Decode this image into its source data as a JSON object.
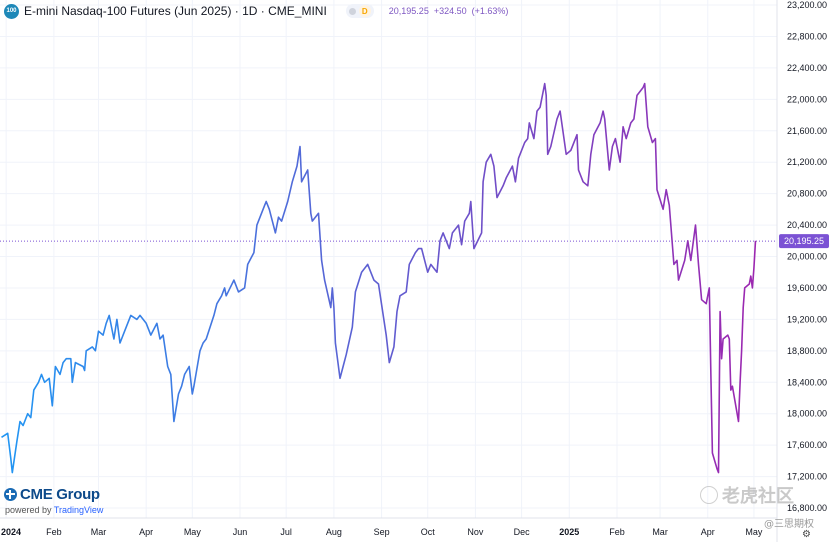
{
  "header": {
    "symbol_icon_text": "100",
    "series_title": "E-mini Nasdaq-100 Futures (Jun 2025) · 1D · CME_MINI",
    "delay_badge": "D",
    "last": "20,195.25",
    "change": "+324.50",
    "change_pct": "(+1.63%)"
  },
  "brand": {
    "logo_text": "CME Group",
    "powered_prefix": "powered by ",
    "powered_name": "TradingView"
  },
  "watermark": {
    "main": "老虎社区",
    "secondary": "@三思期权"
  },
  "colors": {
    "gradient_start": "#2196f3",
    "gradient_end": "#9c27b0",
    "price_label_bg": "#7b52d4",
    "grid": "#f0f3fa",
    "axis_text": "#131722"
  },
  "chart_data": {
    "type": "line",
    "title": "E-mini Nasdaq-100 Futures (Jun 2025) · 1D · CME_MINI",
    "last_price_label": "20,195.25",
    "last_price_value": 20195.25,
    "ylim": [
      16800,
      23200
    ],
    "y_ticks": [
      {
        "value": 23200,
        "label": "23,200.00"
      },
      {
        "value": 22800,
        "label": "22,800.00"
      },
      {
        "value": 22400,
        "label": "22,400.00"
      },
      {
        "value": 22000,
        "label": "22,000.00"
      },
      {
        "value": 21600,
        "label": "21,600.00"
      },
      {
        "value": 21200,
        "label": "21,200.00"
      },
      {
        "value": 20800,
        "label": "20,800.00"
      },
      {
        "value": 20400,
        "label": "20,400.00"
      },
      {
        "value": 20000,
        "label": "20,000.00"
      },
      {
        "value": 19600,
        "label": "19,600.00"
      },
      {
        "value": 19200,
        "label": "19,200.00"
      },
      {
        "value": 18800,
        "label": "18,800.00"
      },
      {
        "value": 18400,
        "label": "18,400.00"
      },
      {
        "value": 18000,
        "label": "18,000.00"
      },
      {
        "value": 17600,
        "label": "17,600.00"
      },
      {
        "value": 17200,
        "label": "17,200.00"
      },
      {
        "value": 16800,
        "label": "16,800.00"
      }
    ],
    "x_ticks": [
      {
        "label": "2024",
        "date": "2024-01-01",
        "bold": true
      },
      {
        "label": "Feb",
        "date": "2024-02-01"
      },
      {
        "label": "Mar",
        "date": "2024-03-01"
      },
      {
        "label": "Apr",
        "date": "2024-04-01"
      },
      {
        "label": "May",
        "date": "2024-05-01"
      },
      {
        "label": "Jun",
        "date": "2024-06-01"
      },
      {
        "label": "Jul",
        "date": "2024-07-01"
      },
      {
        "label": "Aug",
        "date": "2024-08-01"
      },
      {
        "label": "Sep",
        "date": "2024-09-01"
      },
      {
        "label": "Oct",
        "date": "2024-10-01"
      },
      {
        "label": "Nov",
        "date": "2024-11-01"
      },
      {
        "label": "Dec",
        "date": "2024-12-01"
      },
      {
        "label": "2025",
        "date": "2025-01-01",
        "bold": true
      },
      {
        "label": "Feb",
        "date": "2025-02-01"
      },
      {
        "label": "Mar",
        "date": "2025-03-01"
      },
      {
        "label": "Apr",
        "date": "2025-04-01"
      },
      {
        "label": "May",
        "date": "2025-05-01"
      }
    ],
    "x_range": [
      "2023-12-28",
      "2025-05-16"
    ],
    "series": [
      {
        "values": [
          [
            "2023-12-29",
            17700
          ],
          [
            "2024-01-02",
            17750
          ],
          [
            "2024-01-04",
            17430
          ],
          [
            "2024-01-05",
            17250
          ],
          [
            "2024-01-08",
            17650
          ],
          [
            "2024-01-10",
            17900
          ],
          [
            "2024-01-12",
            17850
          ],
          [
            "2024-01-15",
            18000
          ],
          [
            "2024-01-17",
            17950
          ],
          [
            "2024-01-19",
            18300
          ],
          [
            "2024-01-22",
            18400
          ],
          [
            "2024-01-24",
            18500
          ],
          [
            "2024-01-26",
            18400
          ],
          [
            "2024-01-29",
            18450
          ],
          [
            "2024-01-31",
            18100
          ],
          [
            "2024-02-02",
            18600
          ],
          [
            "2024-02-05",
            18500
          ],
          [
            "2024-02-07",
            18650
          ],
          [
            "2024-02-09",
            18700
          ],
          [
            "2024-02-12",
            18700
          ],
          [
            "2024-02-13",
            18400
          ],
          [
            "2024-02-15",
            18650
          ],
          [
            "2024-02-20",
            18600
          ],
          [
            "2024-02-21",
            18550
          ],
          [
            "2024-02-22",
            18800
          ],
          [
            "2024-02-26",
            18850
          ],
          [
            "2024-02-28",
            18800
          ],
          [
            "2024-03-01",
            19050
          ],
          [
            "2024-03-04",
            19000
          ],
          [
            "2024-03-06",
            19150
          ],
          [
            "2024-03-08",
            19250
          ],
          [
            "2024-03-11",
            18950
          ],
          [
            "2024-03-13",
            19200
          ],
          [
            "2024-03-15",
            18900
          ],
          [
            "2024-03-18",
            19050
          ],
          [
            "2024-03-20",
            19150
          ],
          [
            "2024-03-22",
            19250
          ],
          [
            "2024-03-26",
            19200
          ],
          [
            "2024-03-28",
            19250
          ],
          [
            "2024-04-01",
            19150
          ],
          [
            "2024-04-04",
            19000
          ],
          [
            "2024-04-08",
            19150
          ],
          [
            "2024-04-10",
            18950
          ],
          [
            "2024-04-12",
            19000
          ],
          [
            "2024-04-15",
            18600
          ],
          [
            "2024-04-17",
            18500
          ],
          [
            "2024-04-19",
            17900
          ],
          [
            "2024-04-22",
            18250
          ],
          [
            "2024-04-24",
            18350
          ],
          [
            "2024-04-26",
            18500
          ],
          [
            "2024-04-29",
            18600
          ],
          [
            "2024-05-01",
            18250
          ],
          [
            "2024-05-02",
            18350
          ],
          [
            "2024-05-06",
            18800
          ],
          [
            "2024-05-08",
            18900
          ],
          [
            "2024-05-10",
            18950
          ],
          [
            "2024-05-15",
            19250
          ],
          [
            "2024-05-17",
            19400
          ],
          [
            "2024-05-20",
            19500
          ],
          [
            "2024-05-22",
            19600
          ],
          [
            "2024-05-23",
            19500
          ],
          [
            "2024-05-28",
            19700
          ],
          [
            "2024-05-31",
            19550
          ],
          [
            "2024-06-04",
            19600
          ],
          [
            "2024-06-06",
            19900
          ],
          [
            "2024-06-10",
            20050
          ],
          [
            "2024-06-12",
            20400
          ],
          [
            "2024-06-14",
            20500
          ],
          [
            "2024-06-17",
            20650
          ],
          [
            "2024-06-18",
            20700
          ],
          [
            "2024-06-20",
            20600
          ],
          [
            "2024-06-24",
            20300
          ],
          [
            "2024-06-26",
            20500
          ],
          [
            "2024-06-28",
            20450
          ],
          [
            "2024-07-02",
            20700
          ],
          [
            "2024-07-05",
            20950
          ],
          [
            "2024-07-08",
            21150
          ],
          [
            "2024-07-10",
            21400
          ],
          [
            "2024-07-11",
            20950
          ],
          [
            "2024-07-15",
            21100
          ],
          [
            "2024-07-17",
            20550
          ],
          [
            "2024-07-18",
            20450
          ],
          [
            "2024-07-22",
            20550
          ],
          [
            "2024-07-24",
            19950
          ],
          [
            "2024-07-26",
            19700
          ],
          [
            "2024-07-30",
            19350
          ],
          [
            "2024-07-31",
            19600
          ],
          [
            "2024-08-01",
            19350
          ],
          [
            "2024-08-02",
            18900
          ],
          [
            "2024-08-05",
            18450
          ],
          [
            "2024-08-07",
            18600
          ],
          [
            "2024-08-09",
            18750
          ],
          [
            "2024-08-13",
            19100
          ],
          [
            "2024-08-15",
            19550
          ],
          [
            "2024-08-19",
            19800
          ],
          [
            "2024-08-21",
            19850
          ],
          [
            "2024-08-23",
            19900
          ],
          [
            "2024-08-27",
            19700
          ],
          [
            "2024-08-30",
            19650
          ],
          [
            "2024-09-04",
            19000
          ],
          [
            "2024-09-06",
            18650
          ],
          [
            "2024-09-09",
            18850
          ],
          [
            "2024-09-11",
            19300
          ],
          [
            "2024-09-13",
            19500
          ],
          [
            "2024-09-17",
            19550
          ],
          [
            "2024-09-19",
            19900
          ],
          [
            "2024-09-23",
            20050
          ],
          [
            "2024-09-25",
            20100
          ],
          [
            "2024-09-27",
            20100
          ],
          [
            "2024-10-01",
            19800
          ],
          [
            "2024-10-03",
            19900
          ],
          [
            "2024-10-07",
            19800
          ],
          [
            "2024-10-09",
            20200
          ],
          [
            "2024-10-11",
            20300
          ],
          [
            "2024-10-15",
            20100
          ],
          [
            "2024-10-17",
            20300
          ],
          [
            "2024-10-21",
            20400
          ],
          [
            "2024-10-23",
            20150
          ],
          [
            "2024-10-25",
            20450
          ],
          [
            "2024-10-28",
            20550
          ],
          [
            "2024-10-29",
            20700
          ],
          [
            "2024-10-31",
            20100
          ],
          [
            "2024-11-05",
            20300
          ],
          [
            "2024-11-06",
            20950
          ],
          [
            "2024-11-08",
            21200
          ],
          [
            "2024-11-11",
            21300
          ],
          [
            "2024-11-13",
            21150
          ],
          [
            "2024-11-15",
            20750
          ],
          [
            "2024-11-19",
            20900
          ],
          [
            "2024-11-21",
            21000
          ],
          [
            "2024-11-25",
            21150
          ],
          [
            "2024-11-27",
            20950
          ],
          [
            "2024-11-29",
            21250
          ],
          [
            "2024-12-03",
            21450
          ],
          [
            "2024-12-05",
            21500
          ],
          [
            "2024-12-06",
            21700
          ],
          [
            "2024-12-09",
            21500
          ],
          [
            "2024-12-11",
            21850
          ],
          [
            "2024-12-13",
            21900
          ],
          [
            "2024-12-16",
            22200
          ],
          [
            "2024-12-17",
            22050
          ],
          [
            "2024-12-18",
            21300
          ],
          [
            "2024-12-20",
            21400
          ],
          [
            "2024-12-24",
            21750
          ],
          [
            "2024-12-26",
            21850
          ],
          [
            "2024-12-30",
            21300
          ],
          [
            "2025-01-02",
            21350
          ],
          [
            "2025-01-06",
            21550
          ],
          [
            "2025-01-07",
            21100
          ],
          [
            "2025-01-10",
            20950
          ],
          [
            "2025-01-13",
            20900
          ],
          [
            "2025-01-15",
            21300
          ],
          [
            "2025-01-17",
            21550
          ],
          [
            "2025-01-21",
            21700
          ],
          [
            "2025-01-23",
            21850
          ],
          [
            "2025-01-24",
            21750
          ],
          [
            "2025-01-27",
            21100
          ],
          [
            "2025-01-29",
            21400
          ],
          [
            "2025-01-31",
            21500
          ],
          [
            "2025-02-03",
            21200
          ],
          [
            "2025-02-05",
            21650
          ],
          [
            "2025-02-07",
            21500
          ],
          [
            "2025-02-10",
            21700
          ],
          [
            "2025-02-12",
            21750
          ],
          [
            "2025-02-14",
            22050
          ],
          [
            "2025-02-18",
            22150
          ],
          [
            "2025-02-19",
            22200
          ],
          [
            "2025-02-21",
            21650
          ],
          [
            "2025-02-24",
            21450
          ],
          [
            "2025-02-26",
            21500
          ],
          [
            "2025-02-27",
            20850
          ],
          [
            "2025-03-03",
            20600
          ],
          [
            "2025-03-05",
            20850
          ],
          [
            "2025-03-07",
            20650
          ],
          [
            "2025-03-10",
            19900
          ],
          [
            "2025-03-12",
            19950
          ],
          [
            "2025-03-13",
            19700
          ],
          [
            "2025-03-17",
            19950
          ],
          [
            "2025-03-19",
            20200
          ],
          [
            "2025-03-21",
            19950
          ],
          [
            "2025-03-24",
            20400
          ],
          [
            "2025-03-26",
            19900
          ],
          [
            "2025-03-28",
            19450
          ],
          [
            "2025-03-31",
            19400
          ],
          [
            "2025-04-02",
            19600
          ],
          [
            "2025-04-03",
            18550
          ],
          [
            "2025-04-04",
            17500
          ],
          [
            "2025-04-07",
            17300
          ],
          [
            "2025-04-08",
            17250
          ],
          [
            "2025-04-09",
            19300
          ],
          [
            "2025-04-10",
            18700
          ],
          [
            "2025-04-11",
            18950
          ],
          [
            "2025-04-14",
            19000
          ],
          [
            "2025-04-15",
            18950
          ],
          [
            "2025-04-16",
            18300
          ],
          [
            "2025-04-17",
            18350
          ],
          [
            "2025-04-21",
            17900
          ],
          [
            "2025-04-22",
            18400
          ],
          [
            "2025-04-23",
            18800
          ],
          [
            "2025-04-24",
            19350
          ],
          [
            "2025-04-25",
            19600
          ],
          [
            "2025-04-28",
            19650
          ],
          [
            "2025-04-29",
            19750
          ],
          [
            "2025-04-30",
            19600
          ],
          [
            "2025-05-01",
            19850
          ],
          [
            "2025-05-02",
            20200
          ]
        ]
      }
    ]
  }
}
